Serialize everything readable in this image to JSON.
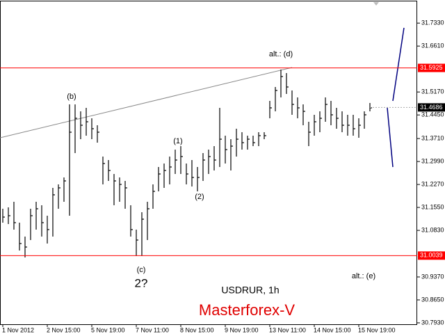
{
  "chart_data": {
    "type": "hlc",
    "symbol": "USDRUR, 1h",
    "brand": "Masterforex-V",
    "color": "#000000",
    "level_color": "#ff0000",
    "categories": [
      "1 Nov 2012",
      null,
      null,
      null,
      null,
      null,
      null,
      null,
      "2 Nov 15:00",
      null,
      null,
      null,
      null,
      null,
      null,
      null,
      "5 Nov 19:00",
      null,
      null,
      null,
      null,
      null,
      null,
      null,
      "7 Nov 11:00",
      null,
      null,
      null,
      null,
      null,
      null,
      null,
      "8 Nov 15:00",
      null,
      null,
      null,
      null,
      null,
      null,
      null,
      "9 Nov 19:00",
      null,
      null,
      null,
      null,
      null,
      null,
      null,
      "13 Nov 11:00",
      null,
      null,
      null,
      null,
      null,
      null,
      null,
      "14 Nov 15:00",
      null,
      null,
      null,
      null,
      null,
      null,
      null,
      "15 Nov 19:00",
      null,
      null
    ],
    "high": [
      31.1508,
      31.1552,
      31.1727,
      31.1072,
      31.0636,
      31.1508,
      31.1727,
      31.1618,
      31.129,
      31.2163,
      31.2272,
      31.249,
      31.4781,
      31.4781,
      31.4563,
      31.4672,
      31.4345,
      31.4127,
      31.3145,
      31.3036,
      31.2599,
      31.249,
      31.2381,
      31.1618,
      31.0854,
      31.1399,
      31.1727,
      31.2272,
      31.2818,
      31.2927,
      31.3145,
      31.3363,
      31.3472,
      31.2927,
      31.3036,
      31.2818,
      31.3254,
      31.3363,
      31.3472,
      31.4672,
      31.38,
      31.369,
      31.4018,
      31.3909,
      31.38,
      31.38,
      31.3909,
      31.3909,
      31.4891,
      31.5327,
      31.5872,
      31.5763,
      31.5218,
      31.5,
      31.4781,
      31.4236,
      31.4454,
      31.4563,
      31.5,
      31.4891,
      31.4672,
      31.4563,
      31.4454,
      31.4454,
      31.4345,
      31.4563,
      31.4825
    ],
    "low": [
      31.1072,
      31.1028,
      31.0854,
      31.0199,
      30.9981,
      31.0527,
      31.0854,
      31.0636,
      31.0417,
      31.0636,
      31.1508,
      31.1727,
      31.129,
      31.3254,
      31.369,
      31.38,
      31.369,
      31.3581,
      31.2272,
      31.2381,
      31.1618,
      31.1727,
      31.1508,
      31.0636,
      31.0025,
      31.0025,
      31.0527,
      31.1508,
      31.2054,
      31.2163,
      31.2272,
      31.2599,
      31.2599,
      31.2272,
      31.2207,
      31.2054,
      31.2381,
      31.2599,
      31.2709,
      31.2818,
      31.2927,
      31.2709,
      31.3145,
      31.3363,
      31.3363,
      31.3472,
      31.3472,
      31.369,
      31.4345,
      31.4563,
      31.5,
      31.5109,
      31.4454,
      31.4345,
      31.4127,
      31.3472,
      31.38,
      31.3909,
      31.4236,
      31.4127,
      31.4018,
      31.3909,
      31.38,
      31.38,
      31.3734,
      31.4018,
      31.4563
    ],
    "close": [
      31.1247,
      31.129,
      31.1072,
      31.0417,
      31.0308,
      31.129,
      31.1508,
      31.1072,
      31.0854,
      31.1945,
      31.2163,
      31.2381,
      31.3909,
      31.4345,
      31.4127,
      31.4236,
      31.4018,
      31.3909,
      31.2927,
      31.2709,
      31.2381,
      31.2272,
      31.2163,
      31.0854,
      31.0527,
      31.1181,
      31.1508,
      31.2054,
      31.2599,
      31.2709,
      31.2818,
      31.3036,
      31.3145,
      31.2599,
      31.249,
      31.249,
      31.3036,
      31.3145,
      31.3036,
      31.369,
      31.3363,
      31.3472,
      31.369,
      31.3581,
      31.369,
      31.3581,
      31.38,
      31.38,
      31.4672,
      31.5218,
      31.5654,
      31.5327,
      31.4781,
      31.4672,
      31.4563,
      31.3909,
      31.4236,
      31.4345,
      31.4781,
      31.4454,
      31.4345,
      31.4127,
      31.4127,
      31.4018,
      31.4127,
      31.4454,
      31.4672
    ],
    "levels": [
      31.5925,
      31.0039
    ],
    "current_price": 31.4686,
    "ylim": [
      30.7886,
      31.8011
    ],
    "yticks": [
      {
        "value": 31.733,
        "label": "31.7330"
      },
      {
        "value": 31.661,
        "label": "31.6610"
      },
      {
        "value": 31.517,
        "label": "31.5170"
      },
      {
        "value": 31.445,
        "label": "31.4450"
      },
      {
        "value": 31.371,
        "label": "31.3710"
      },
      {
        "value": 31.299,
        "label": "31.2990"
      },
      {
        "value": 31.227,
        "label": "31.2270"
      },
      {
        "value": 31.155,
        "label": "31.1550"
      },
      {
        "value": 31.083,
        "label": "31.0830"
      },
      {
        "value": 30.937,
        "label": "30.9370"
      },
      {
        "value": 30.865,
        "label": "30.8650"
      },
      {
        "value": 30.793,
        "label": "30.7930"
      }
    ],
    "annotations": [
      "(b)",
      "(1)",
      "(2)",
      "(c)",
      "2?",
      "alt.: (d)",
      "alt.: (e)"
    ]
  }
}
